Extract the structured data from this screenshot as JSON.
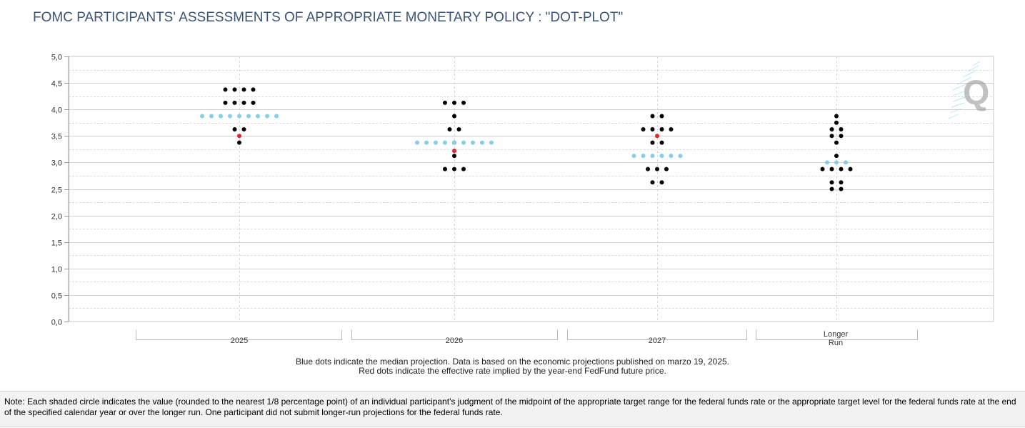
{
  "title": "FOMC PARTICIPANTS' ASSESSMENTS OF APPROPRIATE MONETARY POLICY : \"DOT-PLOT\"",
  "legend_note": {
    "line1": "Blue dots indicate the median projection. Data is based on the economic projections published on marzo 19, 2025.",
    "line2": "Red dots indicate the effective rate implied by the year-end FedFund future price."
  },
  "footer_note": "Note: Each shaded circle indicates the value (rounded to the nearest 1/8 percentage point) of an individual participant's judgment of the midpoint of the appropriate target range for the federal funds rate or the appropriate target level for the federal funds rate at the end of the specified calendar year or over the longer run. One participant did not submit longer-run projections for the federal funds rate.",
  "colors": {
    "participant": "#000000",
    "median": "#87cde6",
    "future": "#e8212b",
    "title": "#3c5478"
  },
  "chart_data": {
    "type": "scatter",
    "title": "FOMC PARTICIPANTS' ASSESSMENTS OF APPROPRIATE MONETARY POLICY : \"DOT-PLOT\"",
    "ylim": [
      0,
      5
    ],
    "yticks": [
      "0,0",
      "0,5",
      "1,0",
      "1,5",
      "2,0",
      "2,5",
      "3,0",
      "3,5",
      "4,0",
      "4,5",
      "5,0"
    ],
    "grid": true,
    "categories": [
      {
        "label": "2025",
        "participants": [
          [
            4.375,
            4
          ],
          [
            4.125,
            4
          ],
          [
            3.625,
            2
          ],
          [
            3.375,
            1
          ]
        ],
        "median": 3.875,
        "median_dots": 9,
        "future": 3.5
      },
      {
        "label": "2026",
        "participants": [
          [
            4.125,
            3
          ],
          [
            3.875,
            1
          ],
          [
            3.625,
            2
          ],
          [
            3.375,
            1
          ],
          [
            3.125,
            1
          ],
          [
            2.875,
            3
          ]
        ],
        "median": 3.375,
        "median_dots": 9,
        "future": 3.22
      },
      {
        "label": "2027",
        "participants": [
          [
            3.875,
            2
          ],
          [
            3.625,
            4
          ],
          [
            3.375,
            2
          ],
          [
            2.875,
            3
          ],
          [
            2.625,
            2
          ]
        ],
        "median": 3.125,
        "median_dots": 6,
        "future": 3.5
      },
      {
        "label": "Longer Run",
        "label_lines": [
          "Longer",
          "Run"
        ],
        "participants": [
          [
            3.875,
            1
          ],
          [
            3.75,
            1
          ],
          [
            3.625,
            2
          ],
          [
            3.5,
            2
          ],
          [
            3.375,
            1
          ],
          [
            3.125,
            1
          ],
          [
            2.875,
            4
          ],
          [
            2.625,
            2
          ],
          [
            2.5,
            2
          ]
        ],
        "median": 3.0,
        "median_dots": 3,
        "future": null
      }
    ]
  }
}
